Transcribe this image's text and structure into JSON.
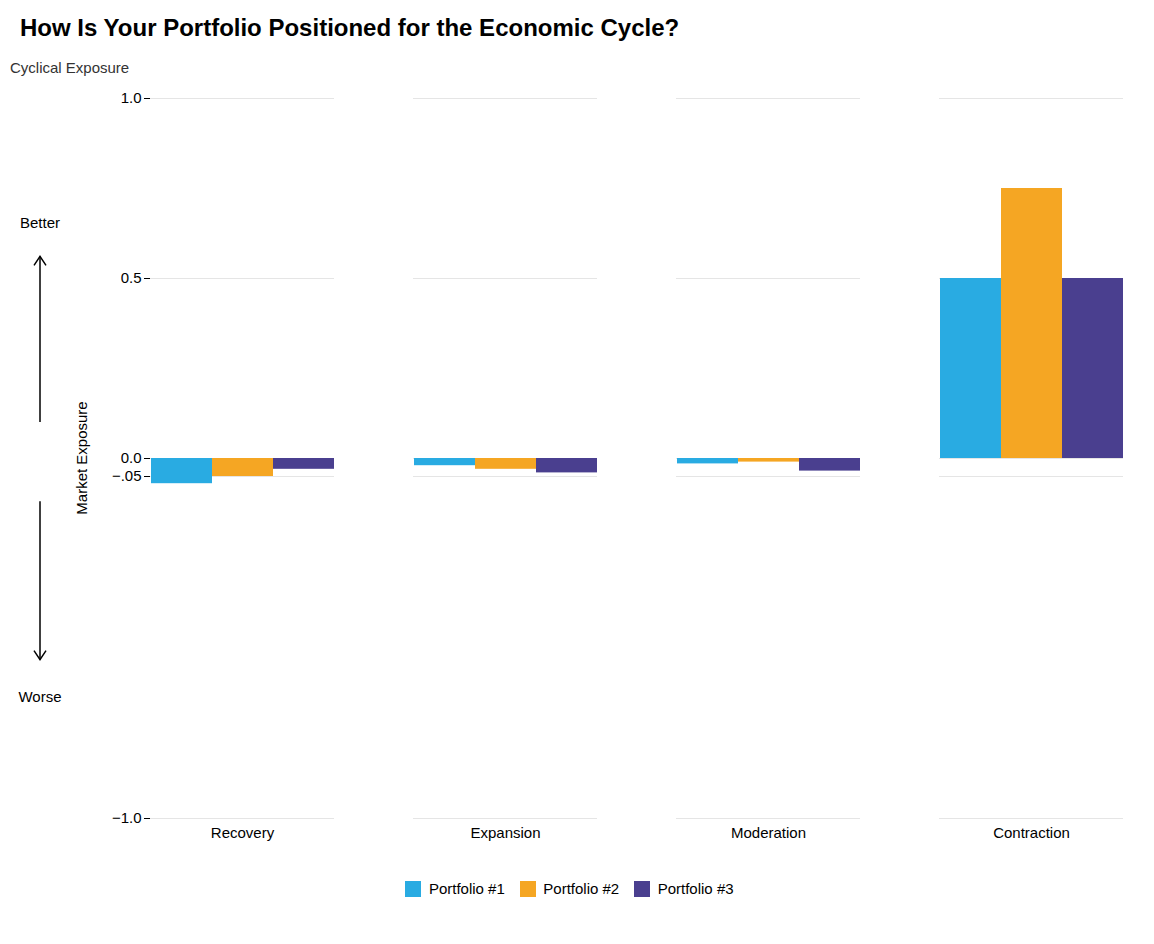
{
  "chart_data": {
    "type": "bar",
    "title": "How Is Your Portfolio Positioned for the Economic Cycle?",
    "ylabel": "Market Exposure",
    "annotations": [
      "Cyclical Exposure",
      "Better",
      "Worse"
    ],
    "categories": [
      "Recovery",
      "Expansion",
      "Moderation",
      "Contraction"
    ],
    "series": [
      {
        "name": "Portfolio #1",
        "color": "#29ABE2",
        "values": [
          -0.07,
          -0.02,
          -0.015,
          0.5
        ]
      },
      {
        "name": "Portfolio #2",
        "color": "#F5A623",
        "values": [
          -0.05,
          -0.03,
          -0.01,
          0.75
        ]
      },
      {
        "name": "Portfolio #3",
        "color": "#4A3F8F",
        "values": [
          -0.03,
          -0.04,
          -0.035,
          0.5
        ]
      }
    ],
    "ylim": [
      -1.0,
      1.0
    ],
    "yticks": [
      {
        "value": -1.0,
        "label": "−1.0"
      },
      {
        "value": -0.05,
        "label": "−.05"
      },
      {
        "value": 0.0,
        "label": "0.0"
      },
      {
        "value": 0.5,
        "label": "0.5"
      },
      {
        "value": 1.0,
        "label": "1.0"
      }
    ],
    "grid": true,
    "legend": "bottom"
  }
}
